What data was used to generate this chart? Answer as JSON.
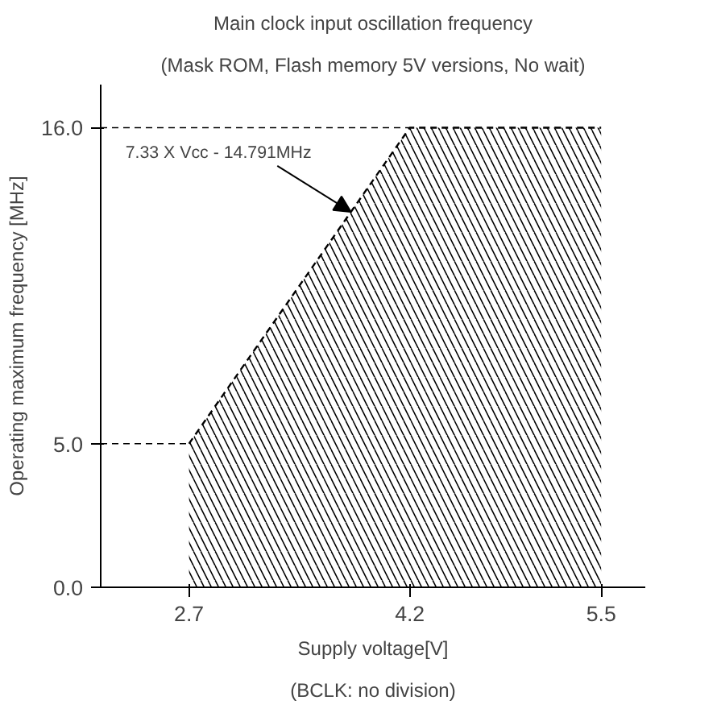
{
  "chart_data": {
    "type": "area",
    "title": "Main clock input oscillation frequency",
    "subtitle": "(Mask ROM, Flash memory 5V versions, No wait)",
    "xlabel": "Supply voltage[V]",
    "ylabel": "Operating maximum frequency [MHz]",
    "x": [
      2.7,
      4.2,
      5.5
    ],
    "values": [
      5.0,
      16.0,
      16.0
    ],
    "color": "#000000",
    "line_style": "dashed",
    "xlim": [
      2.1,
      5.8
    ],
    "ylim": [
      0,
      17.5
    ],
    "xticks": [
      {
        "value": 2.7,
        "label": "2.7"
      },
      {
        "value": 4.2,
        "label": "4.2"
      },
      {
        "value": 5.5,
        "label": "5.5"
      }
    ],
    "yticks": [
      {
        "value": 0,
        "label": "0.0"
      },
      {
        "value": 5,
        "label": "5.0"
      },
      {
        "value": 16,
        "label": "16.0"
      }
    ],
    "ref_lines": [
      {
        "axis": "y",
        "value": 5.0,
        "line_style": "dashed"
      },
      {
        "axis": "y",
        "value": 16.0,
        "line_style": "dashed"
      }
    ],
    "annotations": [
      {
        "text": "7.33 X Vcc - 14.791MHz",
        "x": 3.8,
        "y": 13.07
      },
      "(BCLK: no division)"
    ],
    "grid": false
  }
}
